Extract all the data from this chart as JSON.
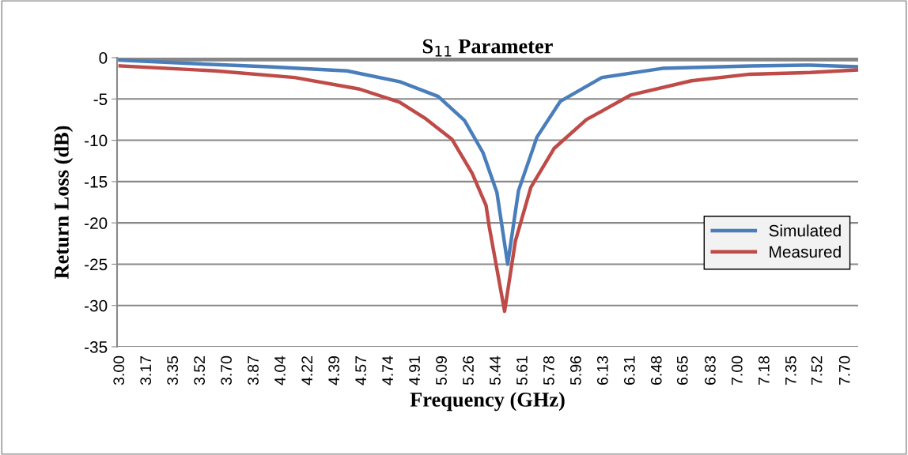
{
  "chart_data": {
    "type": "line",
    "title": "S$_{11}$ Parameter",
    "xlabel": "Frequency (GHz)",
    "ylabel": "Return Loss (dB)",
    "series": [
      {
        "name": "Simulated",
        "color": "#4a7ebb",
        "x": [
          3.0,
          3.45,
          3.96,
          4.47,
          4.81,
          5.06,
          5.23,
          5.35,
          5.44,
          5.51,
          5.58,
          5.7,
          5.85,
          6.12,
          6.51,
          7.08,
          7.47,
          7.77
        ],
        "values": [
          -0.3,
          -0.7,
          -1.1,
          -1.6,
          -2.9,
          -4.7,
          -7.6,
          -11.5,
          -16.3,
          -25.0,
          -16.1,
          -9.6,
          -5.3,
          -2.4,
          -1.3,
          -1.0,
          -0.9,
          -1.1
        ]
      },
      {
        "name": "Measured",
        "color": "#be4b48",
        "x": [
          3.0,
          3.62,
          4.13,
          4.55,
          4.81,
          4.98,
          5.15,
          5.28,
          5.37,
          5.39,
          5.49,
          5.56,
          5.66,
          5.81,
          6.02,
          6.31,
          6.7,
          7.08,
          7.47,
          7.77
        ],
        "values": [
          -1.0,
          -1.6,
          -2.4,
          -3.8,
          -5.4,
          -7.4,
          -9.9,
          -14,
          -17.9,
          -20.4,
          -30.7,
          -22.2,
          -15.7,
          -11,
          -7.5,
          -4.5,
          -2.8,
          -2.0,
          -1.8,
          -1.5
        ]
      }
    ],
    "xlim": [
      2.98,
      7.78
    ],
    "xticks": [
      {
        "value": 3.0,
        "label": "3.00"
      },
      {
        "value": 3.174,
        "label": "3.17"
      },
      {
        "value": 3.348,
        "label": "3.35"
      },
      {
        "value": 3.522,
        "label": "3.52"
      },
      {
        "value": 3.696,
        "label": "3.70"
      },
      {
        "value": 3.87,
        "label": "3.87"
      },
      {
        "value": 4.044,
        "label": "4.04"
      },
      {
        "value": 4.219,
        "label": "4.22"
      },
      {
        "value": 4.393,
        "label": "4.39"
      },
      {
        "value": 4.567,
        "label": "4.57"
      },
      {
        "value": 4.741,
        "label": "4.74"
      },
      {
        "value": 4.915,
        "label": "4.91"
      },
      {
        "value": 5.089,
        "label": "5.09"
      },
      {
        "value": 5.263,
        "label": "5.26"
      },
      {
        "value": 5.437,
        "label": "5.44"
      },
      {
        "value": 5.611,
        "label": "5.61"
      },
      {
        "value": 5.785,
        "label": "5.78"
      },
      {
        "value": 5.959,
        "label": "5.96"
      },
      {
        "value": 6.133,
        "label": "6.13"
      },
      {
        "value": 6.307,
        "label": "6.31"
      },
      {
        "value": 6.481,
        "label": "6.48"
      },
      {
        "value": 6.65,
        "label": "6.65"
      },
      {
        "value": 6.83,
        "label": "6.83"
      },
      {
        "value": 7.004,
        "label": "7.00"
      },
      {
        "value": 7.178,
        "label": "7.18"
      },
      {
        "value": 7.352,
        "label": "7.35"
      },
      {
        "value": 7.52,
        "label": "7.52"
      },
      {
        "value": 7.7,
        "label": "7.70"
      }
    ],
    "ylim": [
      -35,
      0
    ],
    "yticks": [
      0,
      -5,
      -10,
      -15,
      -20,
      -25,
      -30,
      -35
    ],
    "ref_lines": [
      {
        "axis": "y",
        "value": 0,
        "color": "#868686"
      }
    ],
    "grid": "y",
    "legend": "right",
    "marker": "none",
    "line_style": "solid"
  }
}
